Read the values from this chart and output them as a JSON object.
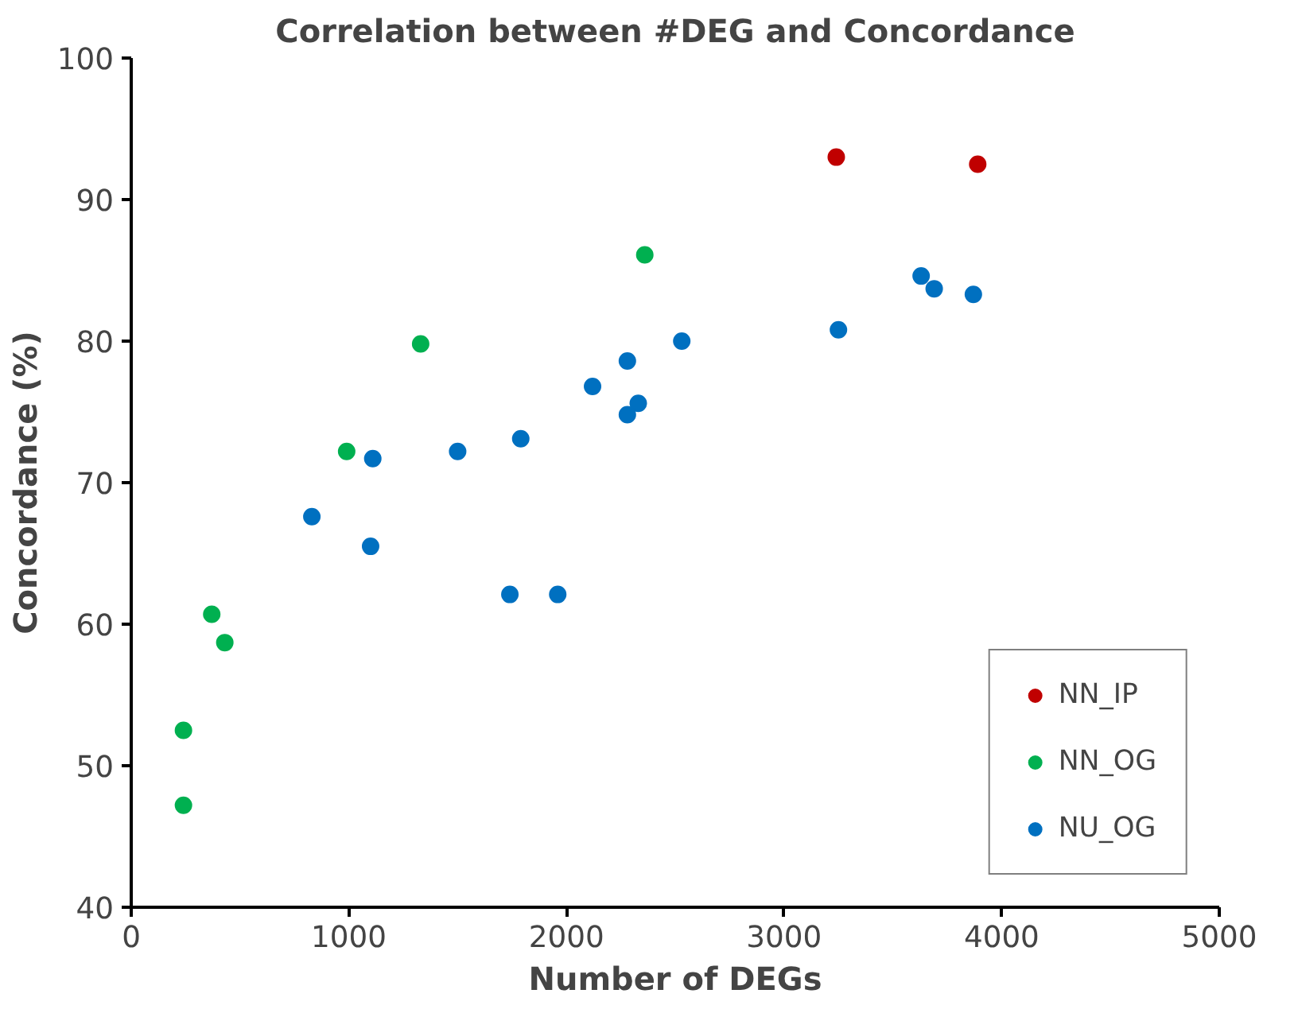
{
  "chart_data": {
    "type": "scatter",
    "title": "Correlation between #DEG and Concordance",
    "xlabel": "Number of DEGs",
    "ylabel": "Concordance (%)",
    "xlim": [
      0,
      5000
    ],
    "xticks": [
      0,
      1000,
      2000,
      3000,
      4000,
      5000
    ],
    "ylim": [
      40,
      100
    ],
    "yticks": [
      40,
      50,
      60,
      70,
      80,
      90,
      100
    ],
    "grid": false,
    "legend": "bottom right",
    "marker": "circle",
    "series": [
      {
        "name": "NN_IP",
        "color": "#c00000",
        "x": [
          3240,
          3890
        ],
        "values": [
          93.0,
          92.5
        ]
      },
      {
        "name": "NN_OG",
        "color": "#00b050",
        "x": [
          240,
          240,
          370,
          430,
          990,
          1330,
          2360
        ],
        "values": [
          52.5,
          47.2,
          60.7,
          58.7,
          72.2,
          79.8,
          86.1
        ]
      },
      {
        "name": "NU_OG",
        "color": "#0070c0",
        "x": [
          830,
          1100,
          1110,
          1500,
          1790,
          1740,
          1960,
          2120,
          2280,
          2330,
          2280,
          2530,
          3250,
          3630,
          3690,
          3870
        ],
        "values": [
          67.6,
          65.5,
          71.7,
          72.2,
          73.1,
          62.1,
          62.1,
          76.8,
          78.6,
          75.6,
          74.8,
          80.0,
          80.8,
          84.6,
          83.7,
          83.3
        ]
      }
    ]
  }
}
